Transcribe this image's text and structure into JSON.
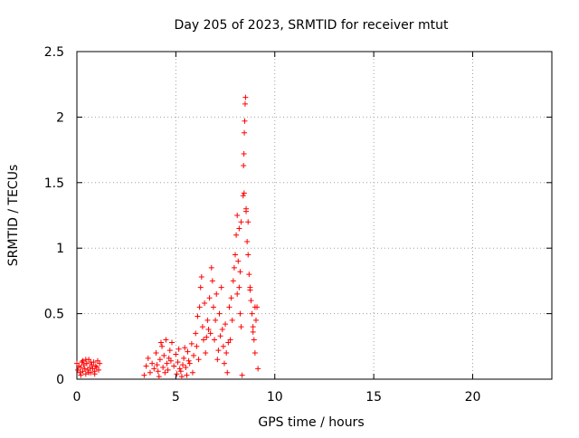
{
  "chart_data": {
    "type": "scatter",
    "title": "Day 205 of 2023, SRMTID for receiver mtut",
    "xlabel": "GPS time / hours",
    "ylabel": "SRMTID / TECUs",
    "xlim": [
      0,
      24
    ],
    "ylim": [
      0,
      2.5
    ],
    "xticks": [
      0,
      5,
      10,
      15,
      20
    ],
    "yticks": [
      0,
      0.5,
      1,
      1.5,
      2,
      2.5
    ],
    "xtick_labels": [
      "0",
      "5",
      "10",
      "15",
      "20"
    ],
    "ytick_labels": [
      "0",
      "0.5",
      "1",
      "1.5",
      "2",
      "2.5"
    ],
    "grid": true,
    "marker": "+",
    "marker_color": "#ff0000",
    "series": [
      {
        "name": "SRMTID",
        "points": [
          [
            0.0,
            0.12
          ],
          [
            0.05,
            0.07
          ],
          [
            0.1,
            0.1
          ],
          [
            0.15,
            0.05
          ],
          [
            0.2,
            0.09
          ],
          [
            0.25,
            0.13
          ],
          [
            0.3,
            0.06
          ],
          [
            0.35,
            0.11
          ],
          [
            0.4,
            0.08
          ],
          [
            0.45,
            0.04
          ],
          [
            0.5,
            0.12
          ],
          [
            0.55,
            0.07
          ],
          [
            0.6,
            0.15
          ],
          [
            0.65,
            0.09
          ],
          [
            0.7,
            0.05
          ],
          [
            0.75,
            0.11
          ],
          [
            0.8,
            0.08
          ],
          [
            0.85,
            0.13
          ],
          [
            0.9,
            0.06
          ],
          [
            0.95,
            0.1
          ],
          [
            1.0,
            0.09
          ],
          [
            1.05,
            0.14
          ],
          [
            1.1,
            0.07
          ],
          [
            1.15,
            0.12
          ],
          [
            0.2,
            0.03
          ],
          [
            0.45,
            0.15
          ],
          [
            0.7,
            0.13
          ],
          [
            0.9,
            0.04
          ],
          [
            0.3,
            0.14
          ],
          [
            0.6,
            0.05
          ],
          [
            3.4,
            0.03
          ],
          [
            3.5,
            0.1
          ],
          [
            3.6,
            0.16
          ],
          [
            3.7,
            0.05
          ],
          [
            3.8,
            0.12
          ],
          [
            3.9,
            0.08
          ],
          [
            4.0,
            0.2
          ],
          [
            4.05,
            0.11
          ],
          [
            4.1,
            0.06
          ],
          [
            4.2,
            0.15
          ],
          [
            4.3,
            0.25
          ],
          [
            4.35,
            0.09
          ],
          [
            4.4,
            0.18
          ],
          [
            4.5,
            0.3
          ],
          [
            4.55,
            0.12
          ],
          [
            4.6,
            0.07
          ],
          [
            4.7,
            0.22
          ],
          [
            4.75,
            0.14
          ],
          [
            4.8,
            0.28
          ],
          [
            4.9,
            0.1
          ],
          [
            5.0,
            0.19
          ],
          [
            5.05,
            0.04
          ],
          [
            5.1,
            0.13
          ],
          [
            5.2,
            0.08
          ],
          [
            5.3,
            0.02
          ],
          [
            5.4,
            0.16
          ],
          [
            5.5,
            0.09
          ],
          [
            5.6,
            0.21
          ],
          [
            5.7,
            0.12
          ],
          [
            5.8,
            0.27
          ],
          [
            5.85,
            0.05
          ],
          [
            5.9,
            0.18
          ],
          [
            6.0,
            0.35
          ],
          [
            6.05,
            0.25
          ],
          [
            6.1,
            0.48
          ],
          [
            6.15,
            0.15
          ],
          [
            6.2,
            0.55
          ],
          [
            6.25,
            0.7
          ],
          [
            6.3,
            0.78
          ],
          [
            6.35,
            0.4
          ],
          [
            6.4,
            0.3
          ],
          [
            6.5,
            0.2
          ],
          [
            6.6,
            0.45
          ],
          [
            6.7,
            0.62
          ],
          [
            6.75,
            0.35
          ],
          [
            6.8,
            0.85
          ],
          [
            6.85,
            0.75
          ],
          [
            6.9,
            0.55
          ],
          [
            6.95,
            0.3
          ],
          [
            7.0,
            0.45
          ],
          [
            7.05,
            0.65
          ],
          [
            7.1,
            0.15
          ],
          [
            7.2,
            0.5
          ],
          [
            7.3,
            0.7
          ],
          [
            7.35,
            0.38
          ],
          [
            7.4,
            0.25
          ],
          [
            7.5,
            0.42
          ],
          [
            7.55,
            0.2
          ],
          [
            7.6,
            0.05
          ],
          [
            7.7,
            0.55
          ],
          [
            7.75,
            0.3
          ],
          [
            7.8,
            0.62
          ],
          [
            7.9,
            0.75
          ],
          [
            7.95,
            0.85
          ],
          [
            8.0,
            0.95
          ],
          [
            8.05,
            1.1
          ],
          [
            8.1,
            1.25
          ],
          [
            8.15,
            0.9
          ],
          [
            8.2,
            0.7
          ],
          [
            8.25,
            0.5
          ],
          [
            8.3,
            0.4
          ],
          [
            8.35,
            0.03
          ],
          [
            8.4,
            1.4
          ],
          [
            8.42,
            1.63
          ],
          [
            8.44,
            1.72
          ],
          [
            8.46,
            1.88
          ],
          [
            8.48,
            1.97
          ],
          [
            8.5,
            2.1
          ],
          [
            8.52,
            2.15
          ],
          [
            8.55,
            1.3
          ],
          [
            8.6,
            1.05
          ],
          [
            8.65,
            0.95
          ],
          [
            8.7,
            0.8
          ],
          [
            8.75,
            0.7
          ],
          [
            8.8,
            0.6
          ],
          [
            8.85,
            0.5
          ],
          [
            8.9,
            0.4
          ],
          [
            8.95,
            0.3
          ],
          [
            9.0,
            0.2
          ],
          [
            9.05,
            0.45
          ],
          [
            9.1,
            0.55
          ],
          [
            9.15,
            0.08
          ],
          [
            8.2,
            1.15
          ],
          [
            8.3,
            1.2
          ],
          [
            8.45,
            1.42
          ],
          [
            8.55,
            1.28
          ],
          [
            8.65,
            1.2
          ],
          [
            8.75,
            0.68
          ],
          [
            9.0,
            0.55
          ],
          [
            8.9,
            0.36
          ],
          [
            4.15,
            0.02
          ],
          [
            4.25,
            0.28
          ],
          [
            4.45,
            0.05
          ],
          [
            4.65,
            0.16
          ],
          [
            5.15,
            0.23
          ],
          [
            5.25,
            0.06
          ],
          [
            5.35,
            0.11
          ],
          [
            5.45,
            0.24
          ],
          [
            5.55,
            0.03
          ],
          [
            5.65,
            0.14
          ],
          [
            6.45,
            0.58
          ],
          [
            6.55,
            0.32
          ],
          [
            6.65,
            0.38
          ],
          [
            7.15,
            0.22
          ],
          [
            7.25,
            0.33
          ],
          [
            7.45,
            0.12
          ],
          [
            7.65,
            0.28
          ],
          [
            7.85,
            0.45
          ],
          [
            8.1,
            0.65
          ],
          [
            8.25,
            0.82
          ]
        ]
      }
    ]
  }
}
